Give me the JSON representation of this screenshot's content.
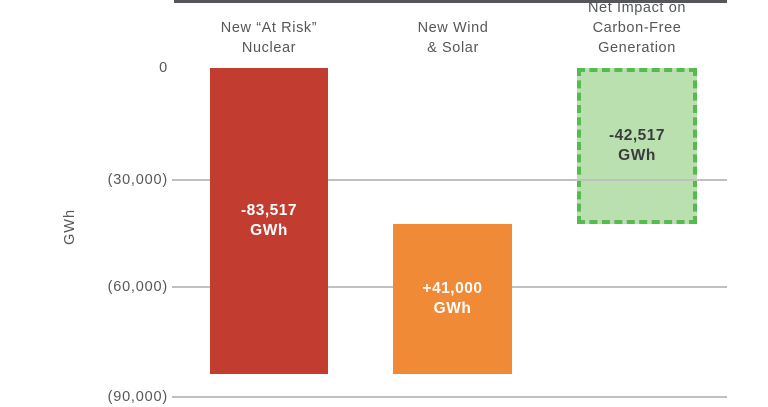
{
  "chart_data": {
    "type": "bar",
    "subtype": "waterfall",
    "title": "",
    "xlabel": "",
    "ylabel": "GWh",
    "ylim": [
      -90000,
      0
    ],
    "grid": true,
    "ytick_values": [
      0,
      -30000,
      -60000,
      -90000
    ],
    "ytick_labels": [
      "0",
      "(30,000)",
      "(60,000)",
      "(90,000)"
    ],
    "categories": [
      "New “At Risk” Nuclear",
      "New Wind & Solar",
      "Net Impact on Carbon-Free Generation"
    ],
    "bars": [
      {
        "category": "New “At Risk” Nuclear",
        "start": 0,
        "end": -83517,
        "change": -83517,
        "value_label": "-83,517 GWh",
        "color": "#C33C30",
        "label_color": "#FFFFFF",
        "border_style": "solid"
      },
      {
        "category": "New Wind & Solar",
        "start": -83517,
        "end": -42517,
        "change": 41000,
        "value_label": "+41,000 GWh",
        "color": "#F08A36",
        "label_color": "#FFFFFF",
        "border_style": "solid"
      },
      {
        "category": "Net Impact on Carbon-Free Generation",
        "start": 0,
        "end": -42517,
        "change": -42517,
        "value_label": "-42,517 GWh",
        "color": "#B9E0AE",
        "border_color": "#56BB4E",
        "label_color": "#3B3C3E",
        "border_style": "dashed"
      }
    ],
    "colors": {
      "gridline": "#C0C0C0",
      "zero_axis": "#55565A",
      "text": "#55575A"
    }
  },
  "display": {
    "titles": {
      "nuclear": "New “At Risk”\nNuclear",
      "wind": "New Wind\n& Solar",
      "net": "Net Impact on\nCarbon-Free\nGeneration"
    },
    "bar_labels": {
      "nuclear": "-83,517\nGWh",
      "wind": "+41,000\nGWh",
      "net": "-42,517\nGWh"
    },
    "axis": {
      "ylabel": "GWh",
      "tick0": "0",
      "tick30": "(30,000)",
      "tick60": "(60,000)",
      "tick90": "(90,000)"
    }
  }
}
